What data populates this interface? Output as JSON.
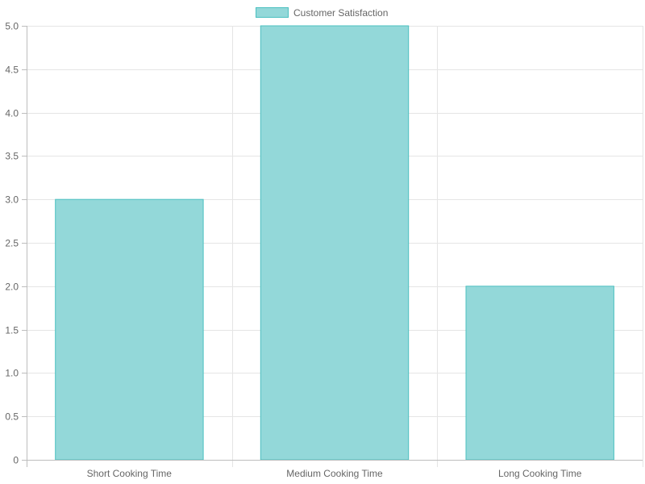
{
  "chart_data": {
    "type": "bar",
    "categories": [
      "Short Cooking Time",
      "Medium Cooking Time",
      "Long Cooking Time"
    ],
    "series": [
      {
        "name": "Customer Satisfaction",
        "values": [
          3,
          5,
          2
        ],
        "fill_color": "#93d8d9",
        "border_color": "#4bc0c0"
      }
    ],
    "ylim": [
      0,
      5
    ],
    "yticks": [
      "0",
      "0.5",
      "1.0",
      "1.5",
      "2.0",
      "2.5",
      "3.0",
      "3.5",
      "4.0",
      "4.5",
      "5.0"
    ],
    "grid": true,
    "legend_position": "top-center",
    "title": "",
    "xlabel": "",
    "ylabel": ""
  }
}
